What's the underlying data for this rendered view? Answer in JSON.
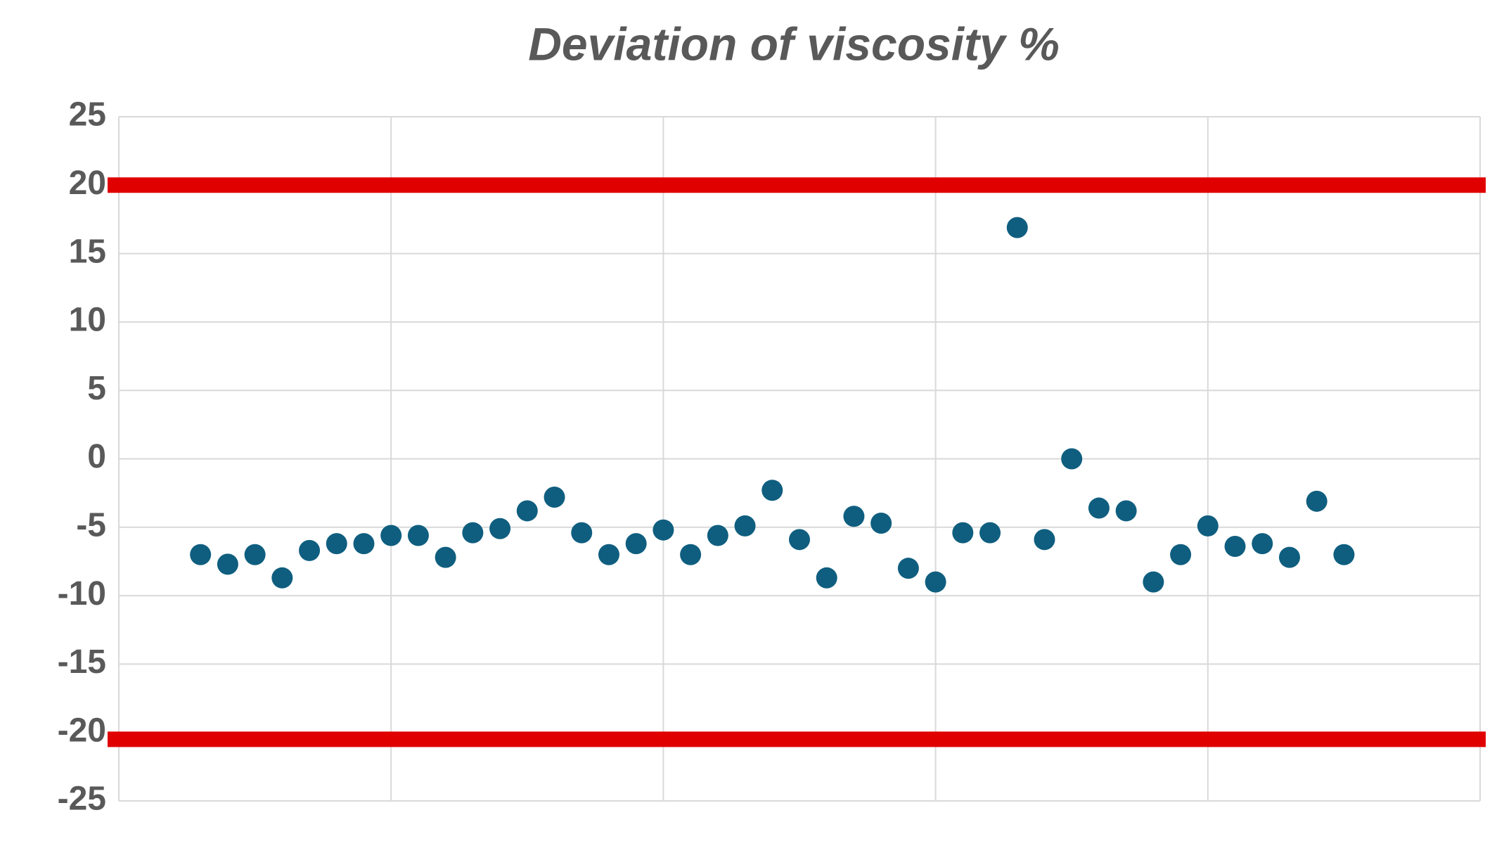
{
  "chart_data": {
    "type": "scatter",
    "title": "Deviation of viscosity %",
    "x": [
      3,
      4,
      5,
      6,
      7,
      8,
      9,
      10,
      11,
      12,
      13,
      14,
      15,
      16,
      17,
      18,
      19,
      20,
      21,
      22,
      23,
      24,
      25,
      26,
      27,
      28,
      29,
      30,
      31,
      32,
      33,
      34,
      35,
      36,
      37,
      38,
      39,
      40,
      41,
      42,
      43,
      44,
      45
    ],
    "series": [
      {
        "color": "#0f5e7f",
        "values": [
          -7,
          -7.7,
          -7,
          -8.7,
          -6.7,
          -6.2,
          -6.2,
          -5.6,
          -5.6,
          -7.2,
          -5.4,
          -5.1,
          -3.8,
          -2.8,
          -5.4,
          -7,
          -6.2,
          -5.2,
          -7,
          -5.6,
          -4.9,
          -2.3,
          -5.9,
          -8.7,
          -4.2,
          -4.7,
          -8,
          -9,
          -5.4,
          -5.4,
          16.9,
          -5.9,
          0,
          -3.6,
          -3.8,
          -9,
          -7,
          -4.9,
          -6.4,
          -6.2,
          -7.2,
          -3.1,
          -7
        ]
      }
    ],
    "reference_lines": [
      {
        "value": 20,
        "color": "#e00000"
      },
      {
        "value": -20.5,
        "color": "#e00000"
      }
    ],
    "xlim": [
      0,
      50
    ],
    "xticks": [
      0,
      10,
      20,
      30,
      40,
      50
    ],
    "ylim": [
      -25,
      25
    ],
    "yticks": [
      -25,
      -20,
      -15,
      -10,
      -5,
      0,
      5,
      10,
      15,
      20,
      25
    ],
    "grid": true
  }
}
